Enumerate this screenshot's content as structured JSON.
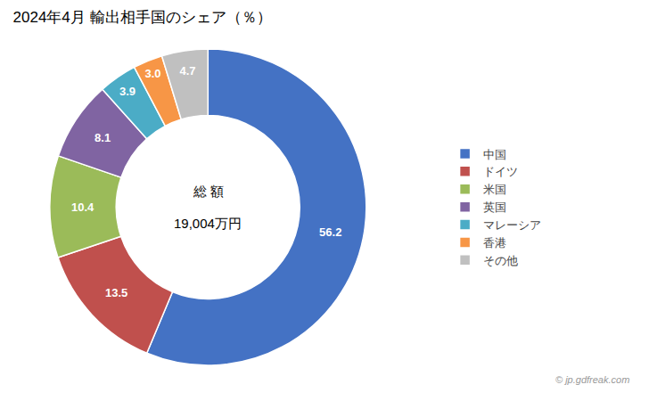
{
  "chart_data": {
    "type": "donut",
    "title": "2024年4月 輸出相手国のシェア（％）",
    "categories": [
      "中国",
      "ドイツ",
      "米国",
      "英国",
      "マレーシア",
      "香港",
      "その他"
    ],
    "values": [
      56.2,
      13.5,
      10.4,
      8.1,
      3.9,
      3.0,
      4.7
    ],
    "value_labels": [
      "56.2",
      "13.5",
      "10.4",
      "8.1",
      "3.9",
      "3.0",
      "4.7"
    ],
    "data_labels": true,
    "colors": [
      "#4472C4",
      "#C0504D",
      "#9BBB59",
      "#8064A2",
      "#4BACC6",
      "#F79646",
      "#C0C0C0"
    ],
    "legend": "right",
    "annotations": [
      "総 額",
      "19,004万円",
      "© jp.gdfreak.com"
    ]
  }
}
